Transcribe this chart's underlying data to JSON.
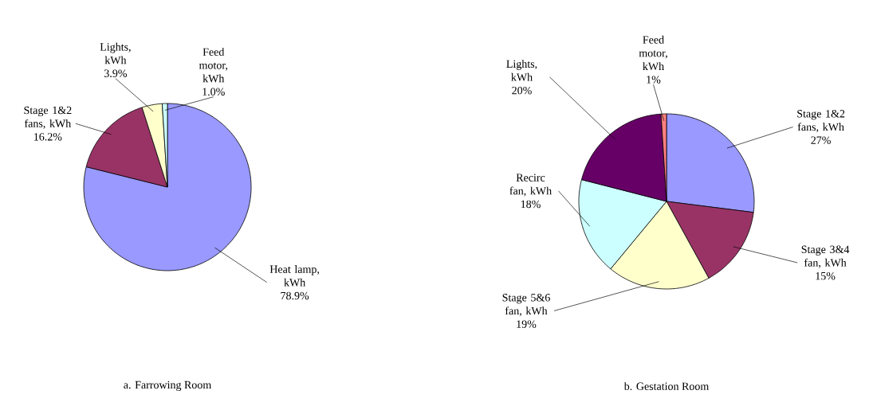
{
  "chart_data": [
    {
      "type": "pie",
      "title": "a. Farrowing Room",
      "categories": [
        "Heat lamp, kWh",
        "Stage 1&2 fans, kWh",
        "Lights, kWh",
        "Feed motor, kWh"
      ],
      "values": [
        78.9,
        16.2,
        3.9,
        1.0
      ],
      "value_labels": [
        "78.9%",
        "16.2%",
        "3.9%",
        "1.0%"
      ],
      "colors": [
        "#9999ff",
        "#993366",
        "#ffffcc",
        "#ccffff"
      ]
    },
    {
      "type": "pie",
      "title": "b. Gestation Room",
      "categories": [
        "Stage 1&2 fans, kWh",
        "Stage 3&4 fan, kWh",
        "Stage 5&6 fan, kWh",
        "Recirc fan, kWh",
        "Lights, kWh",
        "Feed motor, kWh"
      ],
      "values": [
        27,
        15,
        19,
        18,
        20,
        1
      ],
      "value_labels": [
        "27%",
        "15%",
        "19%",
        "18%",
        "20%",
        "1%"
      ],
      "colors": [
        "#9999ff",
        "#993366",
        "#ffffcc",
        "#ccffff",
        "#660066",
        "#ff8080"
      ]
    }
  ]
}
